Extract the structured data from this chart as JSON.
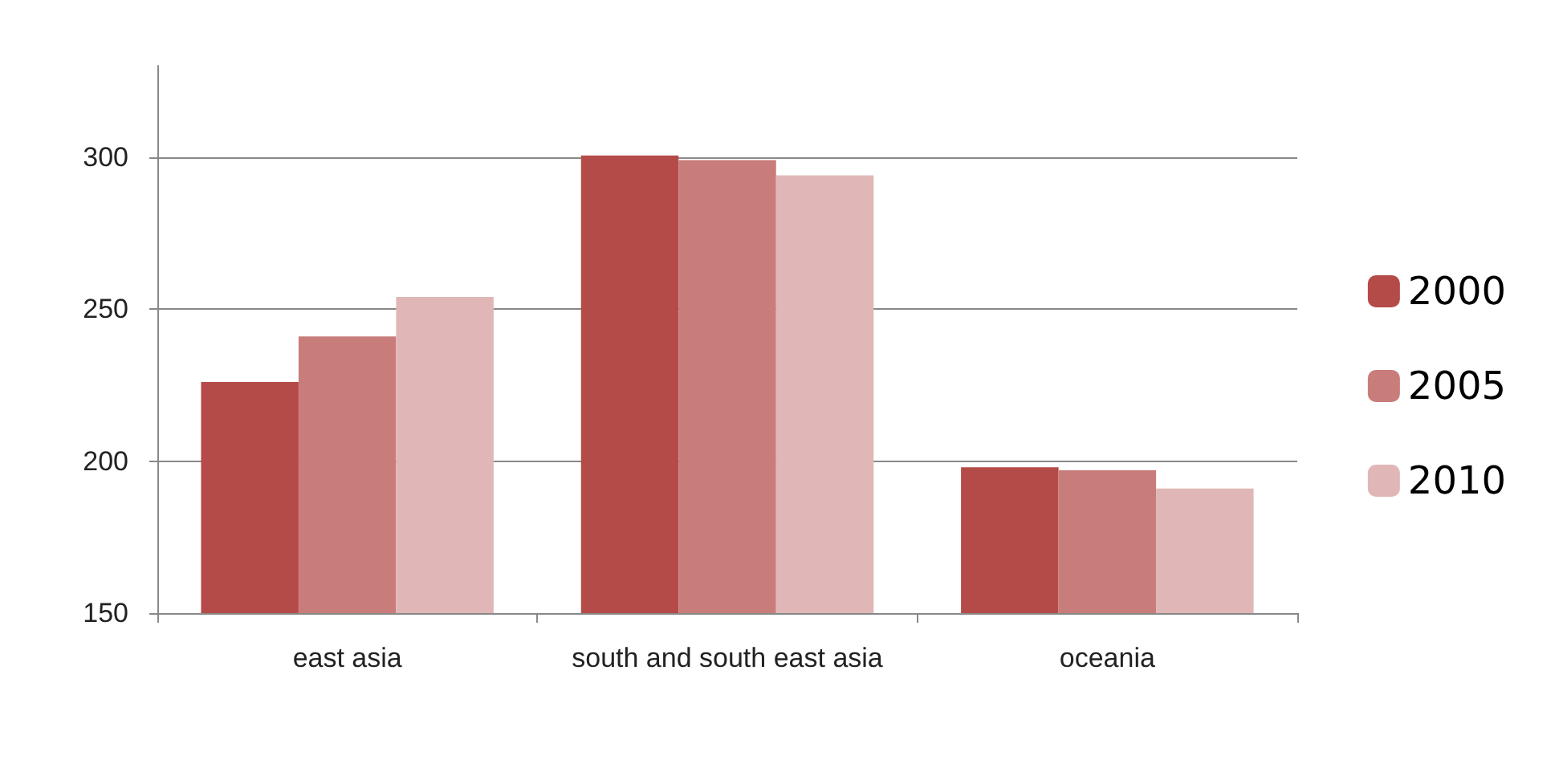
{
  "chart_data": {
    "type": "bar",
    "categories": [
      "east asia",
      "south and south east asia",
      "oceania"
    ],
    "series": [
      {
        "name": "2000",
        "color": "#b54b48",
        "values": [
          226,
          300.5,
          198
        ]
      },
      {
        "name": "2005",
        "color": "#c97d7b",
        "values": [
          241,
          299,
          197
        ]
      },
      {
        "name": "2010",
        "color": "#e0b7b6",
        "values": [
          254,
          294,
          191
        ]
      }
    ],
    "ylim": [
      150,
      330
    ],
    "yticks": [
      150,
      200,
      250,
      300
    ],
    "grid": "y",
    "legend": "right"
  }
}
